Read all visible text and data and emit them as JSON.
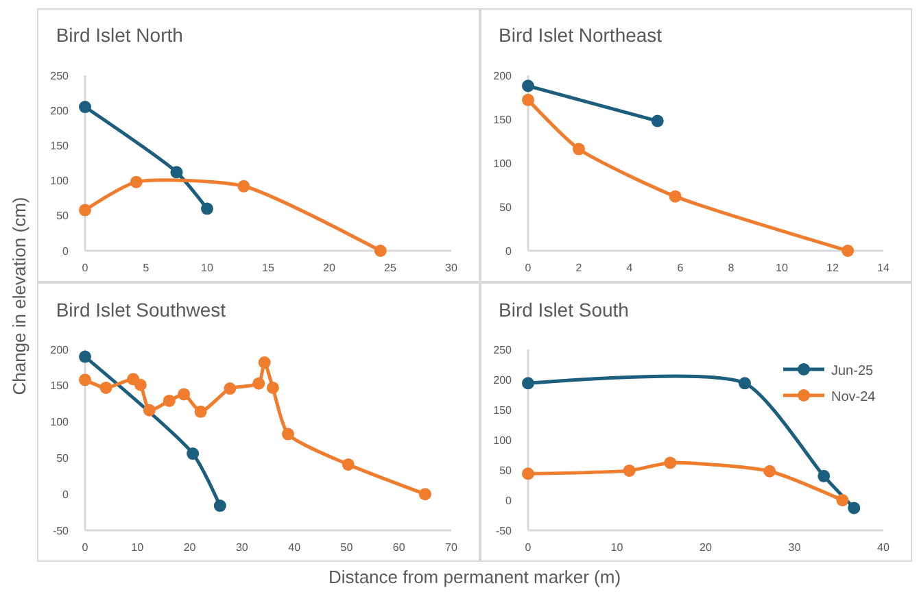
{
  "chart_data": [
    {
      "type": "line",
      "title": "Bird Islet North",
      "ylabel": "Change in elevation (cm)",
      "xlim": [
        0,
        30
      ],
      "xticks": [
        0,
        5,
        10,
        15,
        20,
        25,
        30
      ],
      "ylim": [
        0,
        250
      ],
      "yticks": [
        0,
        50,
        100,
        150,
        200,
        250
      ],
      "marker": "circle",
      "line_style": "solid",
      "grid": false,
      "series": [
        {
          "color": "#1b5e7e",
          "x": [
            0,
            7.5,
            10
          ],
          "values": [
            205,
            112,
            60
          ]
        },
        {
          "color": "#f07d2e",
          "x": [
            0,
            4.2,
            13,
            24.2
          ],
          "values": [
            58,
            98,
            92,
            0
          ]
        }
      ]
    },
    {
      "type": "line",
      "title": "Bird Islet Northeast",
      "xlim": [
        0,
        14
      ],
      "xticks": [
        0,
        2,
        4,
        6,
        8,
        10,
        12,
        14
      ],
      "ylim": [
        0,
        200
      ],
      "yticks": [
        0,
        50,
        100,
        150,
        200
      ],
      "marker": "circle",
      "line_style": "solid",
      "grid": false,
      "series": [
        {
          "color": "#1b5e7e",
          "x": [
            0,
            5.1
          ],
          "values": [
            188,
            148
          ]
        },
        {
          "color": "#f07d2e",
          "x": [
            0,
            2,
            5.8,
            12.6
          ],
          "values": [
            172,
            116,
            62,
            0
          ]
        }
      ]
    },
    {
      "type": "line",
      "title": "Bird Islet Southwest",
      "xlabel": "Distance from permanent marker (m)",
      "xlim": [
        0,
        70
      ],
      "xticks": [
        0,
        10,
        20,
        30,
        40,
        50,
        60,
        70
      ],
      "ylim": [
        -50,
        200
      ],
      "yticks": [
        -50,
        0,
        50,
        100,
        150,
        200
      ],
      "marker": "circle",
      "line_style": "solid",
      "grid": false,
      "series": [
        {
          "color": "#1b5e7e",
          "x": [
            0,
            20.6,
            25.8
          ],
          "values": [
            190,
            56,
            -16
          ]
        },
        {
          "color": "#f07d2e",
          "x": [
            0,
            4,
            9.2,
            10.6,
            12.3,
            16.1,
            18.9,
            22.1,
            27.7,
            33.2,
            34.3,
            35.9,
            38.8,
            50.3,
            65
          ],
          "values": [
            158,
            147,
            159,
            151,
            116,
            129,
            138,
            114,
            146,
            153,
            182,
            147,
            83,
            41,
            0
          ]
        }
      ]
    },
    {
      "type": "line",
      "title": "Bird Islet South",
      "xlim": [
        0,
        40
      ],
      "xticks": [
        0,
        10,
        20,
        30,
        40
      ],
      "ylim": [
        -50,
        250
      ],
      "yticks": [
        -50,
        0,
        50,
        100,
        150,
        200,
        250
      ],
      "marker": "circle",
      "line_style": "solid",
      "grid": false,
      "legend": "top right",
      "series": [
        {
          "name": "Jun-25",
          "color": "#1b5e7e",
          "x": [
            0,
            24.4,
            33.3,
            36.7
          ],
          "values": [
            194,
            194,
            40,
            -13
          ]
        },
        {
          "name": "Nov-24",
          "color": "#f07d2e",
          "x": [
            0,
            11.4,
            16,
            27.2,
            35.4
          ],
          "values": [
            44,
            49,
            62,
            48,
            0
          ]
        }
      ]
    }
  ]
}
